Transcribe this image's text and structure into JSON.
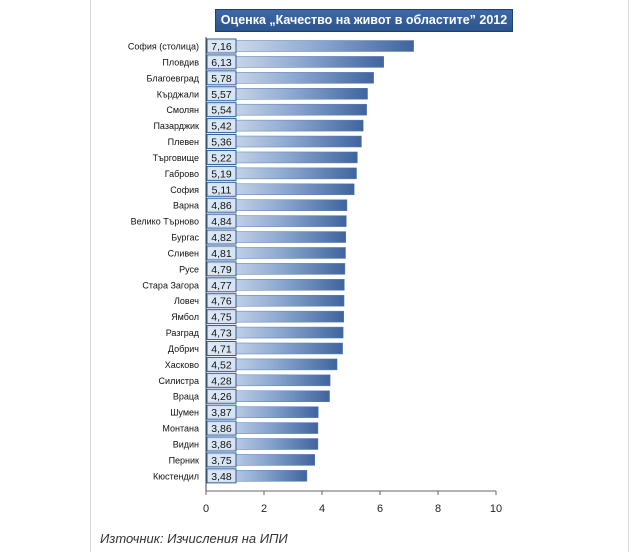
{
  "title": "Оценка „Качество на живот в областите” 2012",
  "source": "Източник: Изчисления на ИПИ",
  "colors": {
    "bar_dark": "#4a6ea8",
    "bar_light": "#dde6f4",
    "label_box_border": "#2e5c9a",
    "label_box_fill": "#dbe7f6",
    "title_bg": "#345c97"
  },
  "chart_data": {
    "type": "bar",
    "orientation": "horizontal",
    "title": "Оценка „Качество на живот в областите” 2012",
    "categories": [
      "София (столица)",
      "Пловдив",
      "Благоевград",
      "Кърджали",
      "Смолян",
      "Пазарджик",
      "Плевен",
      "Търговище",
      "Габрово",
      "София",
      "Варна",
      "Велико Търново",
      "Бургас",
      "Сливен",
      "Русе",
      "Стара Загора",
      "Ловеч",
      "Ямбол",
      "Разград",
      "Добрич",
      "Хасково",
      "Силистра",
      "Враца",
      "Шумен",
      "Монтана",
      "Видин",
      "Перник",
      "Кюстендил"
    ],
    "values": [
      7.16,
      6.13,
      5.78,
      5.57,
      5.54,
      5.42,
      5.36,
      5.22,
      5.19,
      5.11,
      4.86,
      4.84,
      4.82,
      4.81,
      4.79,
      4.77,
      4.76,
      4.75,
      4.73,
      4.71,
      4.52,
      4.28,
      4.26,
      3.87,
      3.86,
      3.86,
      3.75,
      3.48
    ],
    "value_labels": [
      "7,16",
      "6,13",
      "5,78",
      "5,57",
      "5,54",
      "5,42",
      "5,36",
      "5,22",
      "5,19",
      "5,11",
      "4,86",
      "4,84",
      "4,82",
      "4,81",
      "4,79",
      "4,77",
      "4,76",
      "4,75",
      "4,73",
      "4,71",
      "4,52",
      "4,28",
      "4,26",
      "3,87",
      "3,86",
      "3,86",
      "3,75",
      "3,48"
    ],
    "xlim": [
      0,
      10
    ],
    "xticks": [
      0,
      2,
      4,
      6,
      8,
      10
    ],
    "grid": false,
    "legend": "none"
  }
}
